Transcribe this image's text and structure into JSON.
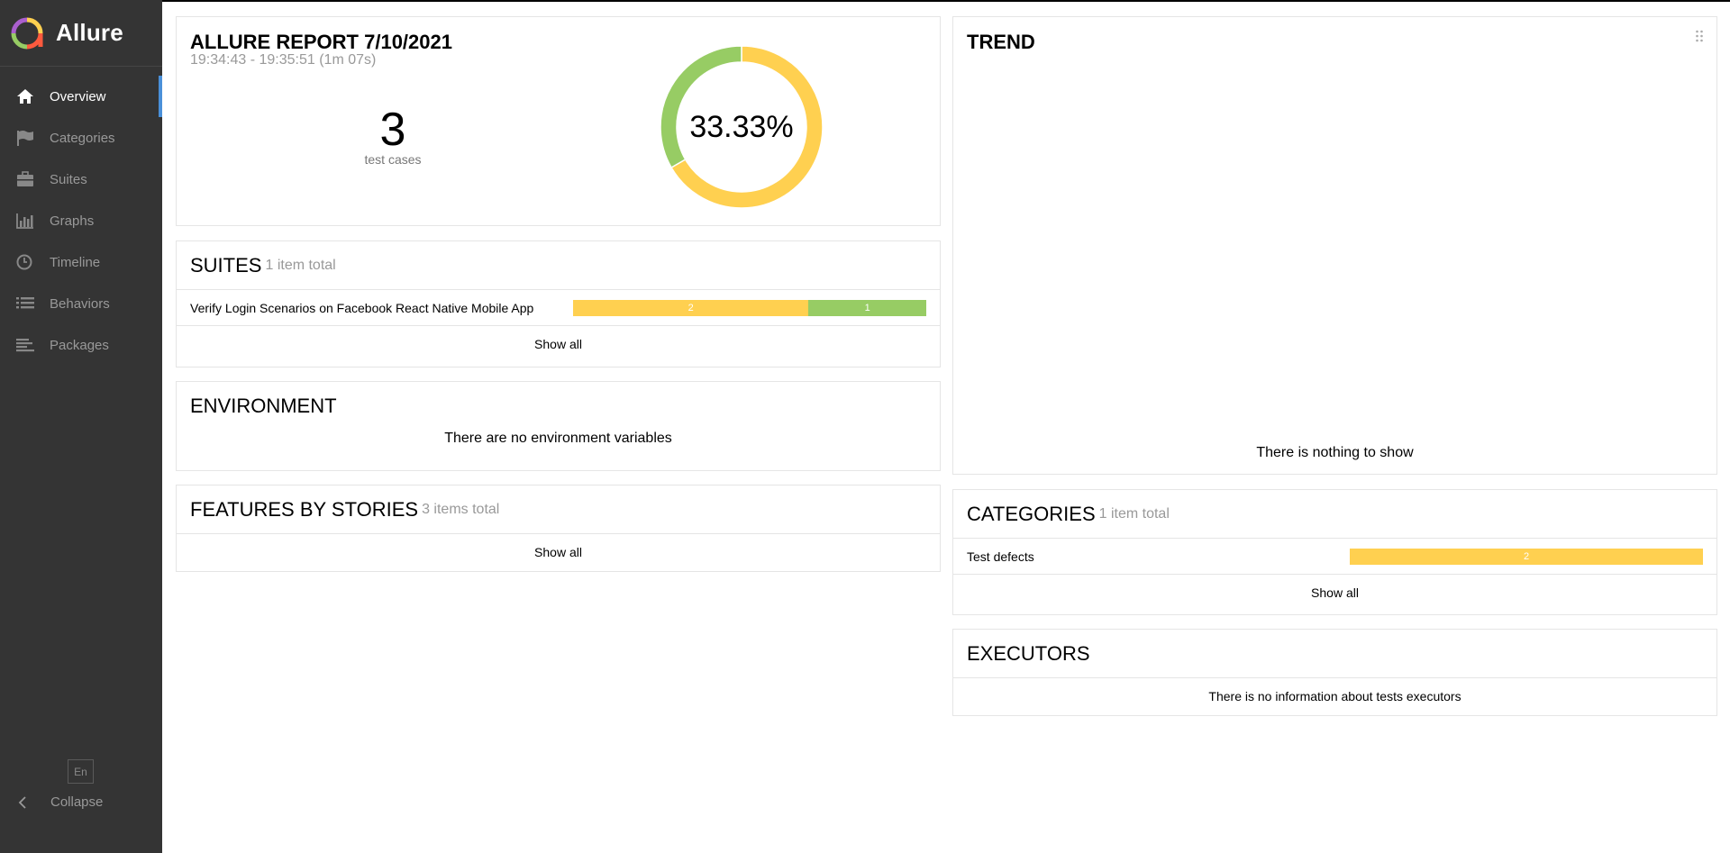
{
  "app": {
    "name": "Allure"
  },
  "sidebar": {
    "items": [
      {
        "label": "Overview",
        "icon": "home-icon",
        "active": true
      },
      {
        "label": "Categories",
        "icon": "flag-icon"
      },
      {
        "label": "Suites",
        "icon": "briefcase-icon"
      },
      {
        "label": "Graphs",
        "icon": "bar-chart-icon"
      },
      {
        "label": "Timeline",
        "icon": "clock-icon"
      },
      {
        "label": "Behaviors",
        "icon": "list-icon"
      },
      {
        "label": "Packages",
        "icon": "align-left-icon"
      }
    ],
    "language": "En",
    "collapse_label": "Collapse"
  },
  "summary": {
    "title": "ALLURE REPORT 7/10/2021",
    "time_range": "19:34:43 - 19:35:51 (1m 07s)",
    "test_count": "3",
    "test_count_label": "test cases",
    "success_rate": "33.33%",
    "donut": {
      "passed": 1,
      "broken": 2,
      "passed_color": "#97cc64",
      "broken_color": "#ffd050"
    }
  },
  "suites": {
    "title": "SUITES",
    "count_label": "1 item total",
    "rows": [
      {
        "name": "Verify Login Scenarios on Facebook React Native Mobile App",
        "broken": "2",
        "passed": "1"
      }
    ],
    "show_all": "Show all"
  },
  "environment": {
    "title": "ENVIRONMENT",
    "empty_message": "There are no environment variables"
  },
  "features": {
    "title": "FEATURES BY STORIES",
    "count_label": "3 items total",
    "show_all": "Show all"
  },
  "trend": {
    "title": "TREND",
    "empty_message": "There is nothing to show"
  },
  "categories": {
    "title": "CATEGORIES",
    "count_label": "1 item total",
    "rows": [
      {
        "name": "Test defects",
        "count": "2"
      }
    ],
    "show_all": "Show all"
  },
  "executors": {
    "title": "EXECUTORS",
    "empty_message": "There is no information about tests executors"
  },
  "colors": {
    "broken": "#ffd050",
    "passed": "#97cc64",
    "accent": "#4a90d9",
    "sidebar": "#343434"
  }
}
